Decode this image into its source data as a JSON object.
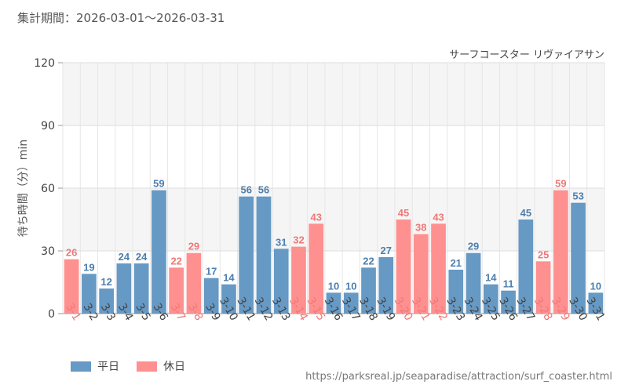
{
  "period_text": "集計期間：2026-03-01〜2026-03-31",
  "source_url": "https://parksreal.jp/seaparadise/attraction/surf_coaster.html",
  "colors": {
    "weekday": "#6699c4",
    "holiday": "#ff9090",
    "holiday_label": "#f07878",
    "weekday_label": "#4d7fae"
  },
  "legend": {
    "weekday": "平日",
    "holiday": "休日"
  },
  "chart_data": {
    "type": "bar",
    "title": "サーフコースター リヴァイアサン",
    "ylabel": "待ち時間（分）min",
    "xlabel": "",
    "ylim": [
      0,
      120
    ],
    "yticks": [
      0,
      30,
      60,
      90,
      120
    ],
    "grid": true,
    "legend_position": "bottom-left",
    "categories": [
      "3-1",
      "3-2",
      "3-3",
      "3-4",
      "3-5",
      "3-6",
      "3-7",
      "3-8",
      "3-9",
      "3-10",
      "3-11",
      "3-12",
      "3-13",
      "3-14",
      "3-15",
      "3-16",
      "3-17",
      "3-18",
      "3-19",
      "3-20",
      "3-21",
      "3-22",
      "3-23",
      "3-24",
      "3-25",
      "3-26",
      "3-27",
      "3-28",
      "3-29",
      "3-30",
      "3-31"
    ],
    "values": [
      26,
      19,
      12,
      24,
      24,
      59,
      22,
      29,
      17,
      14,
      56,
      56,
      31,
      32,
      43,
      10,
      10,
      22,
      27,
      45,
      38,
      43,
      21,
      29,
      14,
      11,
      45,
      25,
      59,
      53,
      10
    ],
    "day_type": [
      "holiday",
      "weekday",
      "weekday",
      "weekday",
      "weekday",
      "weekday",
      "holiday",
      "holiday",
      "weekday",
      "weekday",
      "weekday",
      "weekday",
      "weekday",
      "holiday",
      "holiday",
      "weekday",
      "weekday",
      "weekday",
      "weekday",
      "holiday",
      "holiday",
      "holiday",
      "weekday",
      "weekday",
      "weekday",
      "weekday",
      "weekday",
      "holiday",
      "holiday",
      "weekday",
      "weekday"
    ]
  }
}
